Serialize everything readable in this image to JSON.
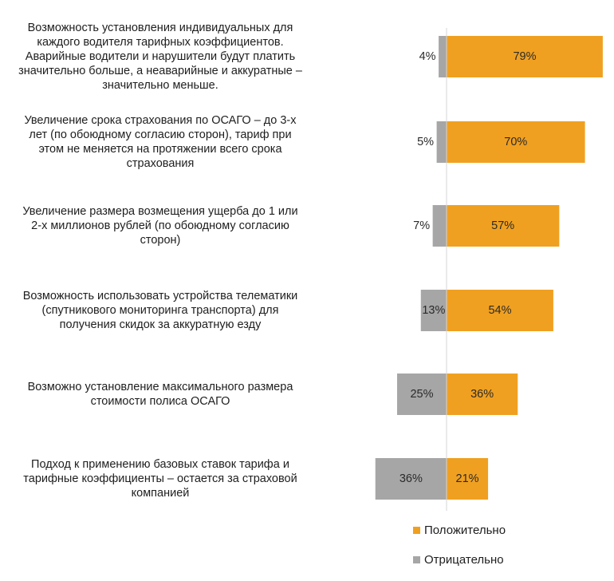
{
  "chart_data": {
    "type": "bar",
    "orientation": "horizontal",
    "stacked": "diverging",
    "title": "",
    "categories": [
      "Возможность установления индивидуальных для каждого водителя тарифных коэффициентов. Аварийные водители и нарушители будут платить значительно больше, а неаварийные и аккуратные – значительно меньше.",
      "Увеличение срока страхования по ОСАГО – до 3-х лет (по обоюдному согласию сторон), тариф при этом не меняется на протяжении всего срока страхования",
      "Увеличение размера возмещения ущерба до 1 или 2-х миллионов рублей (по обоюдному согласию сторон)",
      "Возможность использовать устройства телематики (спутникового мониторинга транспорта) для получения скидок за аккуратную езду",
      "Возможно установление максимального размера стоимости полиса ОСАГО",
      "Подход к применению базовых ставок тарифа и тарифные коэффициенты – остается за страховой компанией"
    ],
    "category_lines": [
      [
        "Возможность установления индивидуальных для",
        "каждого водителя тарифных коэффициентов.",
        "Аварийные водители и нарушители будут платить",
        "значительно больше, а неаварийные и аккуратные –",
        "значительно меньше."
      ],
      [
        "Увеличение срока страхования по ОСАГО – до 3-х",
        "лет (по обоюдному согласию сторон), тариф при",
        "этом не меняется на протяжении всего срока",
        "страхования"
      ],
      [
        "Увеличение размера возмещения ущерба до 1 или",
        "2-х миллионов рублей (по обоюдному согласию",
        "сторон)"
      ],
      [
        "Возможность использовать устройства телематики",
        "(спутникового мониторинга транспорта) для",
        "получения скидок за аккуратную езду"
      ],
      [
        "Возможно установление максимального размера",
        "стоимости полиса ОСАГО"
      ],
      [
        "Подход к применению базовых ставок тарифа и",
        "тарифные коэффициенты – остается за страховой",
        "компанией"
      ]
    ],
    "series": [
      {
        "name": "Положительно",
        "color": "#f0a020",
        "values": [
          79,
          70,
          57,
          54,
          36,
          21
        ],
        "labels": [
          "79%",
          "70%",
          "57%",
          "54%",
          "36%",
          "21%"
        ]
      },
      {
        "name": "Отрицательно",
        "color": "#a6a6a6",
        "values": [
          4,
          5,
          7,
          13,
          25,
          36
        ],
        "labels": [
          "4%",
          "5%",
          "7%",
          "13%",
          "25%",
          "36%"
        ]
      }
    ],
    "legend_position": "bottom-right",
    "grid": false
  }
}
